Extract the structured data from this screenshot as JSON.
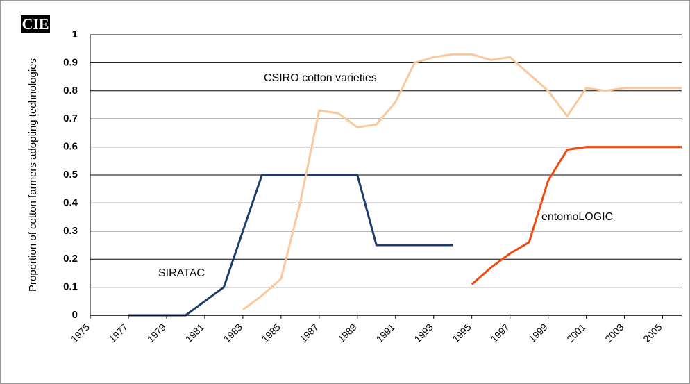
{
  "chart_data": {
    "type": "line",
    "logo": "CIE",
    "y_label": "Proportion of cotton farmers adopting technologies",
    "x": [
      1975,
      1976,
      1977,
      1978,
      1979,
      1980,
      1981,
      1982,
      1983,
      1984,
      1985,
      1986,
      1987,
      1988,
      1989,
      1990,
      1991,
      1992,
      1993,
      1994,
      1995,
      1996,
      1997,
      1998,
      1999,
      2000,
      2001,
      2002,
      2003,
      2004,
      2005,
      2006
    ],
    "series": [
      {
        "name": "SIRATAC",
        "color": "#1f3d6b",
        "values": [
          null,
          null,
          0,
          0,
          0,
          0,
          0.05,
          0.1,
          0.3,
          0.5,
          0.5,
          0.5,
          0.5,
          0.5,
          0.5,
          0.25,
          0.25,
          0.25,
          0.25,
          0.25,
          null,
          null,
          null,
          null,
          null,
          null,
          null,
          null,
          null,
          null,
          null,
          null
        ]
      },
      {
        "name": "CSIRO cotton varieties",
        "color": "#f9c89b",
        "values": [
          null,
          null,
          null,
          null,
          null,
          null,
          null,
          null,
          0.02,
          0.07,
          0.13,
          0.4,
          0.73,
          0.72,
          0.67,
          0.68,
          0.76,
          0.9,
          0.92,
          0.93,
          0.93,
          0.91,
          0.92,
          0.86,
          0.8,
          0.71,
          0.81,
          0.8,
          0.81,
          0.81,
          0.81,
          0.81
        ]
      },
      {
        "name": "entomoLOGIC",
        "color": "#f04a10",
        "values": [
          null,
          null,
          null,
          null,
          null,
          null,
          null,
          null,
          null,
          null,
          null,
          null,
          null,
          null,
          null,
          null,
          null,
          null,
          null,
          null,
          0.11,
          0.17,
          0.22,
          0.26,
          0.48,
          0.59,
          0.6,
          0.6,
          0.6,
          0.6,
          0.6,
          0.6
        ]
      }
    ],
    "xlim": [
      1975,
      2006
    ],
    "xticks": [
      1975,
      1977,
      1979,
      1981,
      1983,
      1985,
      1987,
      1989,
      1991,
      1993,
      1995,
      1997,
      1999,
      2001,
      2003,
      2005
    ],
    "ylim": [
      0,
      1
    ],
    "yticks": [
      0,
      0.1,
      0.2,
      0.3,
      0.4,
      0.5,
      0.6,
      0.7,
      0.8,
      0.9,
      1
    ],
    "grid": true
  }
}
